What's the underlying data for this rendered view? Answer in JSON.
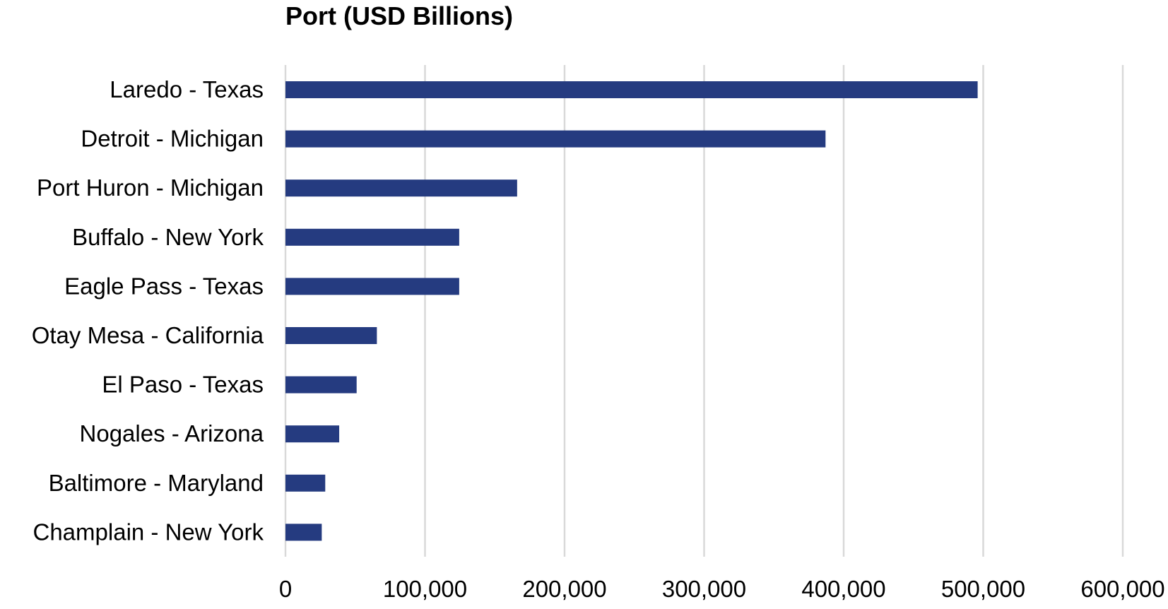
{
  "chart_data": {
    "type": "bar",
    "orientation": "horizontal",
    "title": "Port (USD Billions)",
    "xlabel": "",
    "ylabel": "",
    "categories": [
      "Laredo - Texas",
      "Detroit - Michigan",
      "Port Huron - Michigan",
      "Buffalo - New York",
      "Eagle Pass - Texas",
      "Otay Mesa - California",
      "El Paso - Texas",
      "Nogales - Arizona",
      "Baltimore - Maryland",
      "Champlain - New York"
    ],
    "values": [
      496000,
      387000,
      166000,
      124500,
      124500,
      65500,
      51000,
      38500,
      28500,
      26000
    ],
    "xlim": [
      0,
      600000
    ],
    "x_ticks": [
      0,
      100000,
      200000,
      300000,
      400000,
      500000,
      600000
    ],
    "x_tick_labels": [
      "0",
      "100,000",
      "200,000",
      "300,000",
      "400,000",
      "500,000",
      "600,000"
    ],
    "grid": "vertical",
    "legend": "none",
    "bar_color": "#253b80",
    "grid_color": "#d9d9d9"
  }
}
